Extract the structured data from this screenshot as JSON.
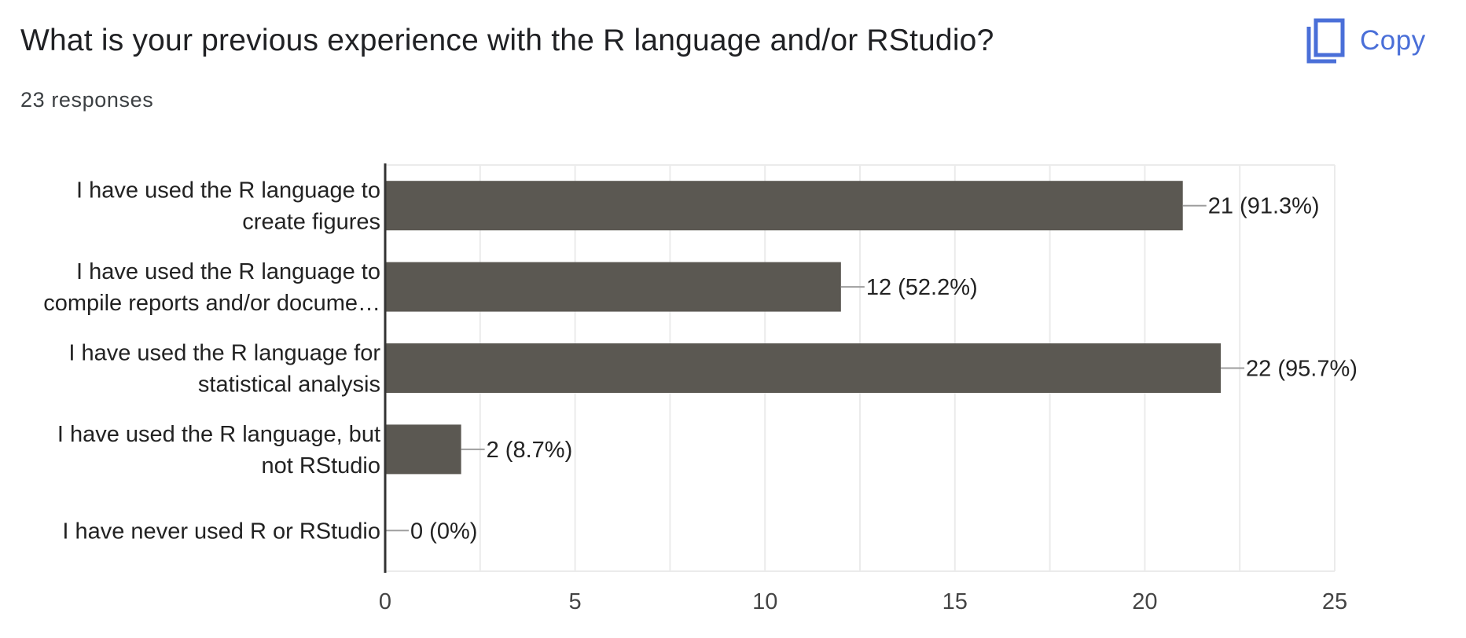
{
  "header": {
    "title": "What is your previous experience with the R language and/or RStudio?",
    "responses": "23 responses",
    "copy_label": "Copy",
    "copy_icon": "copy-icon"
  },
  "colors": {
    "bar": "#5b5852",
    "accent": "#4a6fd8",
    "grid": "#ebebeb",
    "axis": "#333333",
    "leader": "#9e9e9e",
    "text": "#222222"
  },
  "chart_data": {
    "type": "bar",
    "orientation": "horizontal",
    "categories": [
      [
        "I have used the R language to",
        "create figures"
      ],
      [
        "I have used the R language to",
        "compile reports and/or docume…"
      ],
      [
        "I have used the R language for",
        "statistical analysis"
      ],
      [
        "I have used the R language, but",
        "not RStudio"
      ],
      [
        "I have never used R or RStudio"
      ]
    ],
    "values": [
      21,
      12,
      22,
      2,
      0
    ],
    "data_labels": [
      "21 (91.3%)",
      "12 (52.2%)",
      "22 (95.7%)",
      "2 (8.7%)",
      "0 (0%)"
    ],
    "xlim": [
      0,
      25
    ],
    "xticks": [
      0,
      5,
      10,
      15,
      20,
      25
    ],
    "xtick_labels": [
      "0",
      "5",
      "10",
      "15",
      "20",
      "25"
    ],
    "grid": true
  }
}
